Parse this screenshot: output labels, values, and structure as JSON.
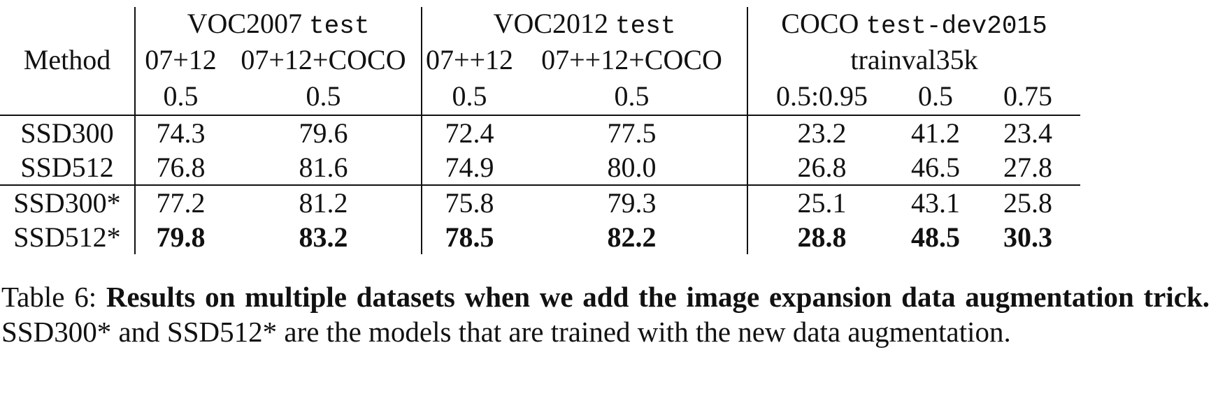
{
  "table": {
    "header": {
      "method_label": "Method",
      "groups": [
        {
          "name": "VOC2007",
          "split": "test"
        },
        {
          "name": "VOC2012",
          "split": "test"
        },
        {
          "name": "COCO",
          "split": "test-dev2015"
        }
      ],
      "train_sets": [
        "07+12",
        "07+12+COCO",
        "07++12",
        "07++12+COCO",
        "trainval35k"
      ],
      "iou": [
        "0.5",
        "0.5",
        "0.5",
        "0.5",
        "0.5:0.95",
        "0.5",
        "0.75"
      ]
    },
    "rows": [
      {
        "method": "SSD300",
        "values": [
          "74.3",
          "79.6",
          "72.4",
          "77.5",
          "23.2",
          "41.2",
          "23.4"
        ]
      },
      {
        "method": "SSD512",
        "values": [
          "76.8",
          "81.6",
          "74.9",
          "80.0",
          "26.8",
          "46.5",
          "27.8"
        ]
      },
      {
        "method": "SSD300*",
        "values": [
          "77.2",
          "81.2",
          "75.8",
          "79.3",
          "25.1",
          "43.1",
          "25.8"
        ]
      },
      {
        "method": "SSD512*",
        "values": [
          "79.8",
          "83.2",
          "78.5",
          "82.2",
          "28.8",
          "48.5",
          "30.3"
        ]
      }
    ]
  },
  "caption": {
    "label": "Table 6:",
    "bold_text": "Results on multiple datasets when we add the image expansion data augmentation trick.",
    "text": "SSD300* and SSD512* are the models that are trained with the new data augmentation."
  }
}
